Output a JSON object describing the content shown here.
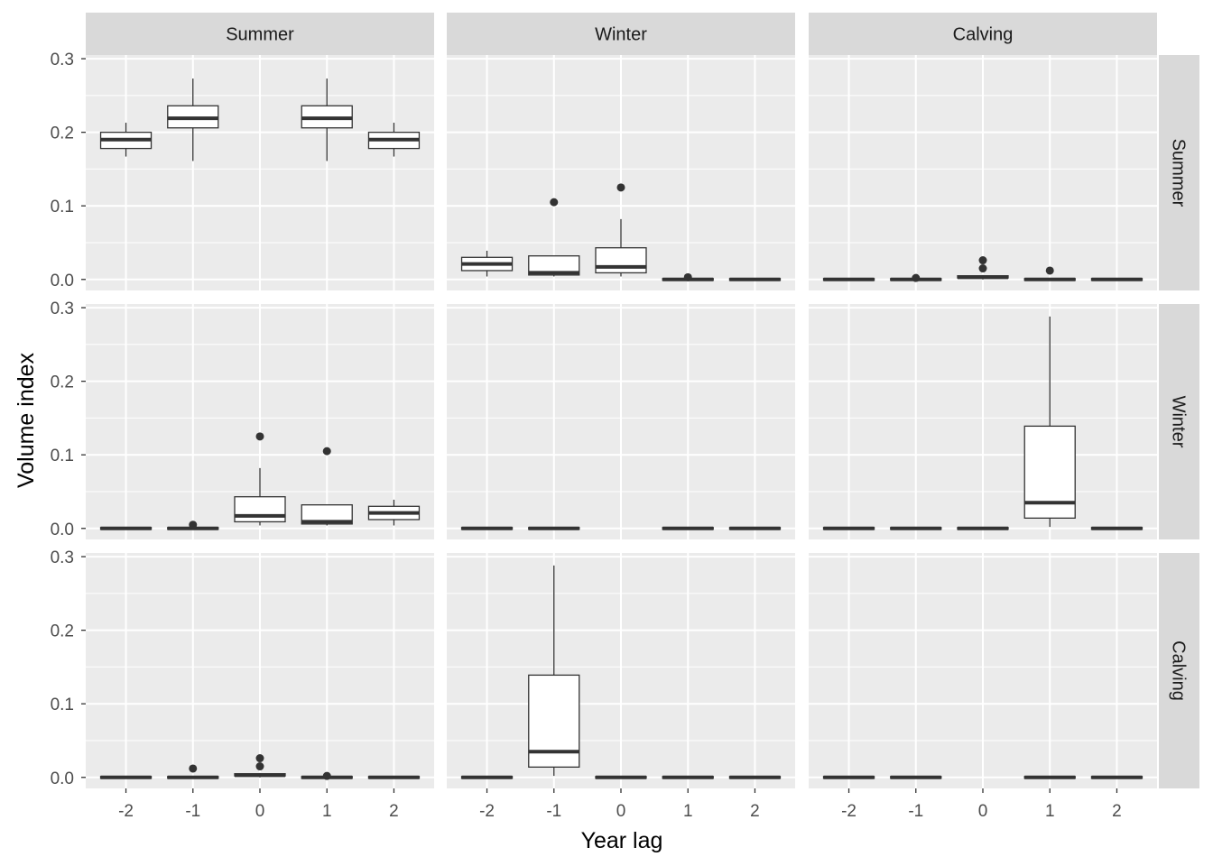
{
  "chart_data": {
    "type": "boxplot",
    "xlabel": "Year lag",
    "ylabel": "Volume index",
    "x_categories": [
      "-2",
      "-1",
      "0",
      "1",
      "2"
    ],
    "ylim": [
      -0.015,
      0.305
    ],
    "y_ticks": [
      0.0,
      0.1,
      0.2,
      0.3
    ],
    "y_tick_labels": [
      "0.0",
      "0.1",
      "0.2",
      "0.3"
    ],
    "facet_columns": [
      "Summer",
      "Winter",
      "Calving"
    ],
    "facet_rows": [
      "Summer",
      "Winter",
      "Calving"
    ],
    "grid": true,
    "colors": {
      "panel_bg": "#ebebeb",
      "strip_bg": "#d9d9d9",
      "grid": "#ffffff",
      "box_line": "#333333",
      "box_fill": "#ffffff"
    },
    "panels": [
      {
        "row": "Summer",
        "col": "Summer",
        "boxes": [
          {
            "x": "-2",
            "min": 0.167,
            "q1": 0.178,
            "median": 0.19,
            "q3": 0.2,
            "max": 0.213,
            "outliers": []
          },
          {
            "x": "-1",
            "min": 0.161,
            "q1": 0.206,
            "median": 0.219,
            "q3": 0.236,
            "max": 0.273,
            "outliers": []
          },
          {
            "x": "1",
            "min": 0.161,
            "q1": 0.206,
            "median": 0.219,
            "q3": 0.236,
            "max": 0.273,
            "outliers": []
          },
          {
            "x": "2",
            "min": 0.167,
            "q1": 0.178,
            "median": 0.19,
            "q3": 0.2,
            "max": 0.213,
            "outliers": []
          }
        ]
      },
      {
        "row": "Summer",
        "col": "Winter",
        "boxes": [
          {
            "x": "-2",
            "min": 0.004,
            "q1": 0.012,
            "median": 0.021,
            "q3": 0.03,
            "max": 0.039,
            "outliers": []
          },
          {
            "x": "-1",
            "min": 0.004,
            "q1": 0.006,
            "median": 0.009,
            "q3": 0.032,
            "max": 0.032,
            "outliers": [
              0.105
            ]
          },
          {
            "x": "0",
            "min": 0.004,
            "q1": 0.009,
            "median": 0.017,
            "q3": 0.043,
            "max": 0.082,
            "outliers": [
              0.125
            ]
          },
          {
            "x": "1",
            "min": 0.0,
            "q1": 0.0,
            "median": 0.0,
            "q3": 0.0,
            "max": 0.0,
            "outliers": [
              0.003
            ]
          },
          {
            "x": "2",
            "min": 0.0,
            "q1": 0.0,
            "median": 0.0,
            "q3": 0.0,
            "max": 0.0,
            "outliers": []
          }
        ]
      },
      {
        "row": "Summer",
        "col": "Calving",
        "boxes": [
          {
            "x": "-2",
            "min": 0.0,
            "q1": 0.0,
            "median": 0.0,
            "q3": 0.0,
            "max": 0.0,
            "outliers": []
          },
          {
            "x": "-1",
            "min": 0.0,
            "q1": 0.0,
            "median": 0.0,
            "q3": 0.0,
            "max": 0.0,
            "outliers": [
              0.002
            ]
          },
          {
            "x": "0",
            "min": 0.0,
            "q1": 0.002,
            "median": 0.003,
            "q3": 0.005,
            "max": 0.006,
            "outliers": [
              0.015,
              0.026
            ]
          },
          {
            "x": "1",
            "min": 0.0,
            "q1": 0.0,
            "median": 0.0,
            "q3": 0.002,
            "max": 0.002,
            "outliers": [
              0.012
            ]
          },
          {
            "x": "2",
            "min": 0.0,
            "q1": 0.0,
            "median": 0.0,
            "q3": 0.0,
            "max": 0.0,
            "outliers": []
          }
        ]
      },
      {
        "row": "Winter",
        "col": "Summer",
        "boxes": [
          {
            "x": "-2",
            "min": 0.0,
            "q1": 0.0,
            "median": 0.0,
            "q3": 0.0,
            "max": 0.0,
            "outliers": []
          },
          {
            "x": "-1",
            "min": 0.0,
            "q1": 0.0,
            "median": 0.0,
            "q3": 0.0,
            "max": 0.0,
            "outliers": [
              0.005
            ]
          },
          {
            "x": "0",
            "min": 0.004,
            "q1": 0.009,
            "median": 0.017,
            "q3": 0.043,
            "max": 0.082,
            "outliers": [
              0.125
            ]
          },
          {
            "x": "1",
            "min": 0.004,
            "q1": 0.006,
            "median": 0.009,
            "q3": 0.032,
            "max": 0.032,
            "outliers": [
              0.105
            ]
          },
          {
            "x": "2",
            "min": 0.004,
            "q1": 0.012,
            "median": 0.021,
            "q3": 0.03,
            "max": 0.039,
            "outliers": []
          }
        ]
      },
      {
        "row": "Winter",
        "col": "Winter",
        "boxes": [
          {
            "x": "-2",
            "min": 0.0,
            "q1": 0.0,
            "median": 0.0,
            "q3": 0.0,
            "max": 0.0,
            "outliers": []
          },
          {
            "x": "-1",
            "min": 0.0,
            "q1": 0.0,
            "median": 0.0,
            "q3": 0.0,
            "max": 0.0,
            "outliers": []
          },
          {
            "x": "1",
            "min": 0.0,
            "q1": 0.0,
            "median": 0.0,
            "q3": 0.0,
            "max": 0.0,
            "outliers": []
          },
          {
            "x": "2",
            "min": 0.0,
            "q1": 0.0,
            "median": 0.0,
            "q3": 0.0,
            "max": 0.0,
            "outliers": []
          }
        ]
      },
      {
        "row": "Winter",
        "col": "Calving",
        "boxes": [
          {
            "x": "-2",
            "min": 0.0,
            "q1": 0.0,
            "median": 0.0,
            "q3": 0.0,
            "max": 0.0,
            "outliers": []
          },
          {
            "x": "-1",
            "min": 0.0,
            "q1": 0.0,
            "median": 0.0,
            "q3": 0.0,
            "max": 0.0,
            "outliers": []
          },
          {
            "x": "0",
            "min": 0.0,
            "q1": 0.0,
            "median": 0.0,
            "q3": 0.0,
            "max": 0.0,
            "outliers": []
          },
          {
            "x": "1",
            "min": 0.002,
            "q1": 0.014,
            "median": 0.035,
            "q3": 0.139,
            "max": 0.288,
            "outliers": []
          },
          {
            "x": "2",
            "min": 0.0,
            "q1": 0.0,
            "median": 0.0,
            "q3": 0.0,
            "max": 0.0,
            "outliers": []
          }
        ]
      },
      {
        "row": "Calving",
        "col": "Summer",
        "boxes": [
          {
            "x": "-2",
            "min": 0.0,
            "q1": 0.0,
            "median": 0.0,
            "q3": 0.0,
            "max": 0.0,
            "outliers": []
          },
          {
            "x": "-1",
            "min": 0.0,
            "q1": 0.0,
            "median": 0.0,
            "q3": 0.002,
            "max": 0.002,
            "outliers": [
              0.012
            ]
          },
          {
            "x": "0",
            "min": 0.0,
            "q1": 0.002,
            "median": 0.003,
            "q3": 0.005,
            "max": 0.006,
            "outliers": [
              0.015,
              0.026
            ]
          },
          {
            "x": "1",
            "min": 0.0,
            "q1": 0.0,
            "median": 0.0,
            "q3": 0.0,
            "max": 0.0,
            "outliers": [
              0.002
            ]
          },
          {
            "x": "2",
            "min": 0.0,
            "q1": 0.0,
            "median": 0.0,
            "q3": 0.0,
            "max": 0.0,
            "outliers": []
          }
        ]
      },
      {
        "row": "Calving",
        "col": "Winter",
        "boxes": [
          {
            "x": "-2",
            "min": 0.0,
            "q1": 0.0,
            "median": 0.0,
            "q3": 0.0,
            "max": 0.0,
            "outliers": []
          },
          {
            "x": "-1",
            "min": 0.002,
            "q1": 0.014,
            "median": 0.035,
            "q3": 0.139,
            "max": 0.288,
            "outliers": []
          },
          {
            "x": "0",
            "min": 0.0,
            "q1": 0.0,
            "median": 0.0,
            "q3": 0.0,
            "max": 0.0,
            "outliers": []
          },
          {
            "x": "1",
            "min": 0.0,
            "q1": 0.0,
            "median": 0.0,
            "q3": 0.0,
            "max": 0.0,
            "outliers": []
          },
          {
            "x": "2",
            "min": 0.0,
            "q1": 0.0,
            "median": 0.0,
            "q3": 0.0,
            "max": 0.0,
            "outliers": []
          }
        ]
      },
      {
        "row": "Calving",
        "col": "Calving",
        "boxes": [
          {
            "x": "-2",
            "min": 0.0,
            "q1": 0.0,
            "median": 0.0,
            "q3": 0.0,
            "max": 0.0,
            "outliers": []
          },
          {
            "x": "-1",
            "min": 0.0,
            "q1": 0.0,
            "median": 0.0,
            "q3": 0.0,
            "max": 0.0,
            "outliers": []
          },
          {
            "x": "1",
            "min": 0.0,
            "q1": 0.0,
            "median": 0.0,
            "q3": 0.0,
            "max": 0.0,
            "outliers": []
          },
          {
            "x": "2",
            "min": 0.0,
            "q1": 0.0,
            "median": 0.0,
            "q3": 0.0,
            "max": 0.0,
            "outliers": []
          }
        ]
      }
    ]
  }
}
